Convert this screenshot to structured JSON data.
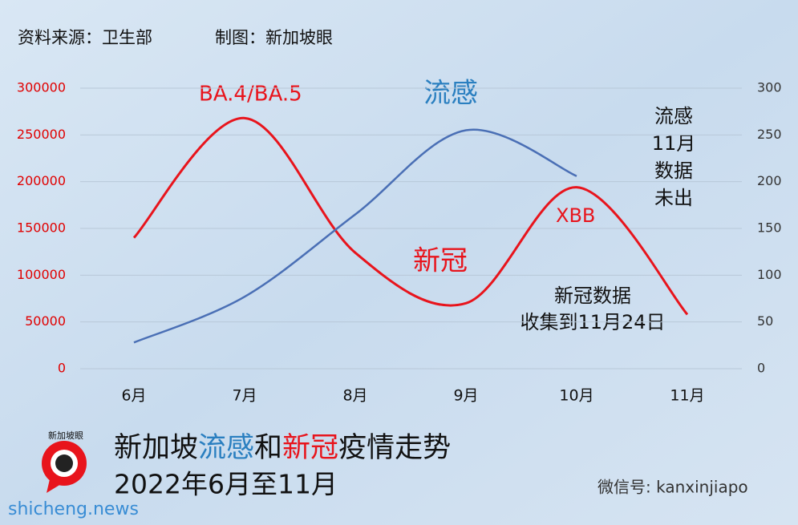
{
  "source_note": "资料来源：卫生部",
  "credit_note": "制图：新加坡眼",
  "chart_data": {
    "type": "line",
    "categories": [
      "6月",
      "7月",
      "8月",
      "9月",
      "10月",
      "11月"
    ],
    "ylim": [
      0,
      300000
    ],
    "yticks": [
      0,
      50000,
      100000,
      150000,
      200000,
      250000,
      300000
    ],
    "y2lim": [
      0,
      300
    ],
    "y2ticks": [
      0,
      50,
      100,
      150,
      200,
      250,
      300
    ],
    "grid": true,
    "ytick_color": "#e00000",
    "y2tick_color": "#333333",
    "series": [
      {
        "name": "新冠",
        "color": "#e8141c",
        "values": [
          140000,
          268000,
          124000,
          70000,
          194000,
          58000
        ]
      },
      {
        "name": "流感",
        "color": "#4a6fb5",
        "axis": "y2",
        "values": [
          28,
          77,
          165,
          255,
          206,
          null
        ]
      }
    ],
    "annotations": [
      "BA.4/BA.5",
      "XBB"
    ],
    "note_flu": [
      "流感",
      "11月",
      "数据",
      "未出"
    ],
    "note_covid": [
      "新冠数据",
      "收集到11月24日"
    ],
    "title_parts": [
      {
        "text": "新加坡",
        "color": "#111111"
      },
      {
        "text": "流感",
        "color": "#2a7fc0"
      },
      {
        "text": "和",
        "color": "#111111"
      },
      {
        "text": "新冠",
        "color": "#e8141c"
      },
      {
        "text": "疫情走势",
        "color": "#111111"
      }
    ],
    "subtitle": "2022年6月至11月"
  },
  "logo_text": "新加坡眼",
  "wechat": "微信号: kanxinjiapo",
  "watermark": "shicheng.news"
}
